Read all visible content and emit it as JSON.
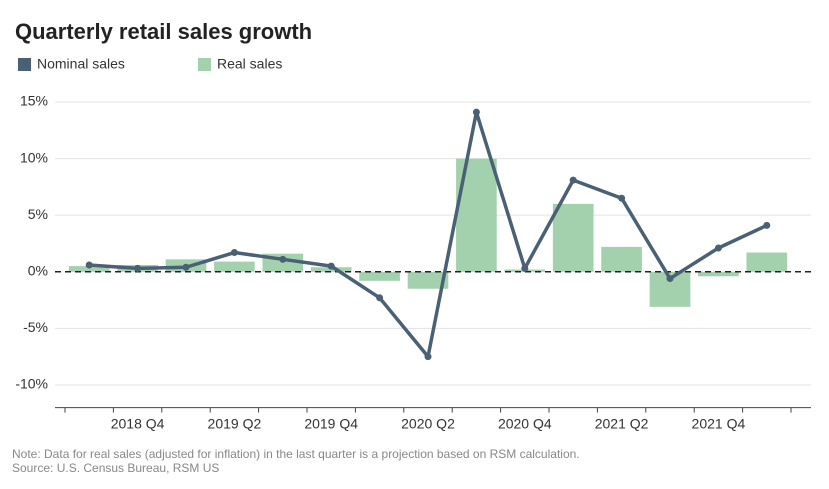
{
  "chart_data": {
    "type": "bar-line",
    "title": "Quarterly retail sales growth",
    "categories": [
      null,
      "2018 Q4",
      null,
      "2019 Q2",
      null,
      "2019 Q4",
      null,
      "2020 Q2",
      null,
      "2020 Q4",
      null,
      "2021 Q2",
      null,
      "2021 Q4",
      null
    ],
    "series": [
      {
        "name": "Nominal sales",
        "type": "line",
        "color": "#4a6075",
        "values": [
          0.6,
          0.3,
          0.4,
          1.7,
          1.1,
          0.5,
          -2.3,
          -7.5,
          14.1,
          0.3,
          8.1,
          6.5,
          -0.6,
          2.1,
          4.1
        ]
      },
      {
        "name": "Real sales",
        "type": "bar",
        "color": "#a3d1ad",
        "values": [
          0.5,
          0.6,
          1.1,
          0.9,
          1.6,
          0.4,
          -0.8,
          -1.5,
          10.0,
          0.2,
          6.0,
          2.2,
          -3.1,
          -0.4,
          1.7
        ]
      }
    ],
    "ylim": [
      -12,
      15
    ],
    "yticks": [
      {
        "value": 15,
        "label": "15%"
      },
      {
        "value": 10,
        "label": "10%"
      },
      {
        "value": 5,
        "label": "5%"
      },
      {
        "value": 0,
        "label": "0%"
      },
      {
        "value": -5,
        "label": "-5%"
      },
      {
        "value": -10,
        "label": "-10%"
      }
    ],
    "grid": true,
    "notes": [
      "Note: Data for real sales (adjusted for inflation) in the last quarter is a projection based on RSM calculation.",
      "Source: U.S. Census Bureau, RSM US"
    ]
  }
}
